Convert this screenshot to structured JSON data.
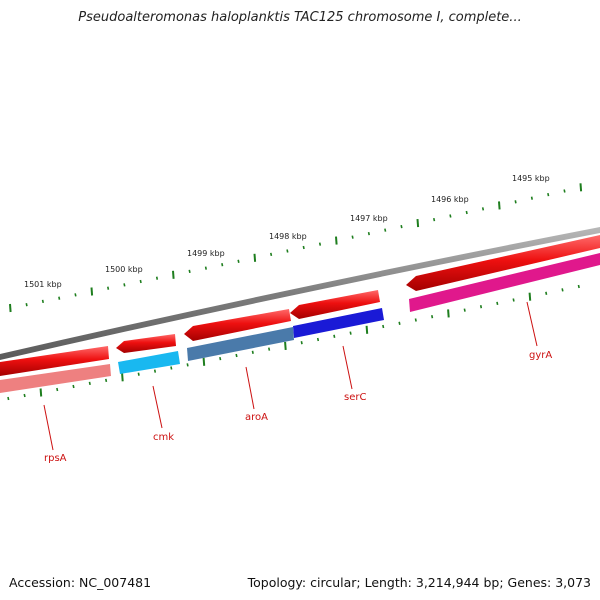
{
  "title": "Pseudoalteromonas haloplanktis TAC125 chromosome I, complete...",
  "accession": "Accession: NC_007481",
  "summary": "Topology: circular; Length: 3,214,944 bp; Genes: 3,073",
  "ruler": {
    "labels": [
      "1501 kbp",
      "1500 kbp",
      "1499 kbp",
      "1498 kbp",
      "1497 kbp",
      "1496 kbp",
      "1495 kbp"
    ]
  },
  "genes": [
    {
      "name": "rpsA",
      "strand": "forward",
      "arrow_color": "#e51414",
      "cog_color": "#ee8080"
    },
    {
      "name": "cmk",
      "strand": "reverse",
      "arrow_color": "#e51414",
      "cog_color": "#19b8f0"
    },
    {
      "name": "aroA",
      "strand": "reverse",
      "arrow_color": "#e51414",
      "cog_color": "#4a7aaa"
    },
    {
      "name": "serC",
      "strand": "reverse",
      "arrow_color": "#e51414",
      "cog_color": "#1a1ad6"
    },
    {
      "name": "gyrA",
      "strand": "reverse",
      "arrow_color": "#e51414",
      "cog_color": "#e0188c"
    }
  ],
  "colors": {
    "backbone": "#8a8a8a",
    "tick": "#1e7e1e",
    "label": "#cc1111"
  }
}
